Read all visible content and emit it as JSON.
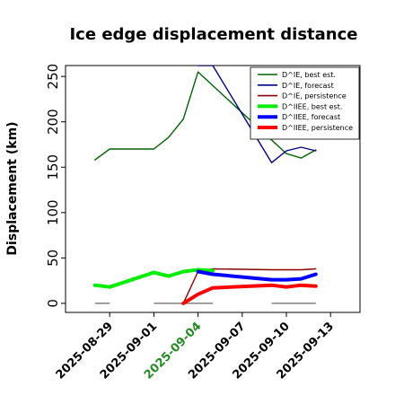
{
  "chart_data": {
    "type": "line",
    "title": "Ice edge displacement distance",
    "xlabel": "",
    "ylabel": "Displacement (km)",
    "xlim": [
      "2025-08-26",
      "2025-09-15"
    ],
    "ylim": [
      -10,
      262
    ],
    "y_ticks": [
      0,
      50,
      100,
      150,
      200,
      250
    ],
    "x_ticks": [
      "2025-08-29",
      "2025-09-01",
      "2025-09-04",
      "2025-09-07",
      "2025-09-10",
      "2025-09-13"
    ],
    "highlight_tick": "2025-09-04",
    "highlight_color": "#228b22",
    "legend_position": "top-right",
    "series": [
      {
        "name": "D^IE, best est.",
        "color": "#006400",
        "width": "thin",
        "points": [
          [
            "2025-08-28",
            158
          ],
          [
            "2025-08-29",
            170
          ],
          [
            "2025-09-01",
            170
          ],
          [
            "2025-09-02",
            183
          ],
          [
            "2025-09-03",
            203
          ],
          [
            "2025-09-04",
            255
          ],
          [
            "2025-09-10",
            165
          ],
          [
            "2025-09-11",
            160
          ],
          [
            "2025-09-12",
            169
          ]
        ]
      },
      {
        "name": "D^IE, forecast",
        "color": "#00008b",
        "width": "thin",
        "points": [
          [
            "2025-09-04",
            262
          ],
          [
            "2025-09-05",
            262
          ],
          [
            "2025-09-09",
            155
          ],
          [
            "2025-09-10",
            168
          ],
          [
            "2025-09-11",
            172
          ],
          [
            "2025-09-12",
            168
          ]
        ]
      },
      {
        "name": "D^IE, persistence",
        "color": "#8b0000",
        "width": "thin",
        "points": [
          [
            "2025-09-03",
            0
          ],
          [
            "2025-09-04",
            35
          ],
          [
            "2025-09-05",
            38
          ],
          [
            "2025-09-09",
            37
          ],
          [
            "2025-09-10",
            37
          ],
          [
            "2025-09-11",
            37
          ],
          [
            "2025-09-12",
            38
          ]
        ]
      },
      {
        "name": "D^IIEE, best est.",
        "color": "#00ee00",
        "width": "thick",
        "points": [
          [
            "2025-08-28",
            20
          ],
          [
            "2025-08-29",
            18
          ],
          [
            "2025-09-01",
            34
          ],
          [
            "2025-09-02",
            30
          ],
          [
            "2025-09-03",
            35
          ],
          [
            "2025-09-04",
            37
          ],
          [
            "2025-09-05",
            36
          ]
        ]
      },
      {
        "name": "D^IIEE, forecast",
        "color": "#0000ff",
        "width": "thick",
        "points": [
          [
            "2025-09-04",
            35
          ],
          [
            "2025-09-05",
            32
          ],
          [
            "2025-09-09",
            26
          ],
          [
            "2025-09-10",
            26
          ],
          [
            "2025-09-11",
            27
          ],
          [
            "2025-09-12",
            32
          ]
        ]
      },
      {
        "name": "D^IIEE, persistence",
        "color": "#ff0000",
        "width": "thick",
        "points": [
          [
            "2025-09-03",
            0
          ],
          [
            "2025-09-04",
            10
          ],
          [
            "2025-09-05",
            17
          ],
          [
            "2025-09-09",
            20
          ],
          [
            "2025-09-10",
            18
          ],
          [
            "2025-09-11",
            20
          ],
          [
            "2025-09-12",
            19
          ]
        ]
      }
    ],
    "zero_segments": [
      [
        "2025-08-28",
        "2025-08-29"
      ],
      [
        "2025-09-01",
        "2025-09-05"
      ],
      [
        "2025-09-09",
        "2025-09-12"
      ]
    ],
    "zero_segment_color": "#808080"
  }
}
